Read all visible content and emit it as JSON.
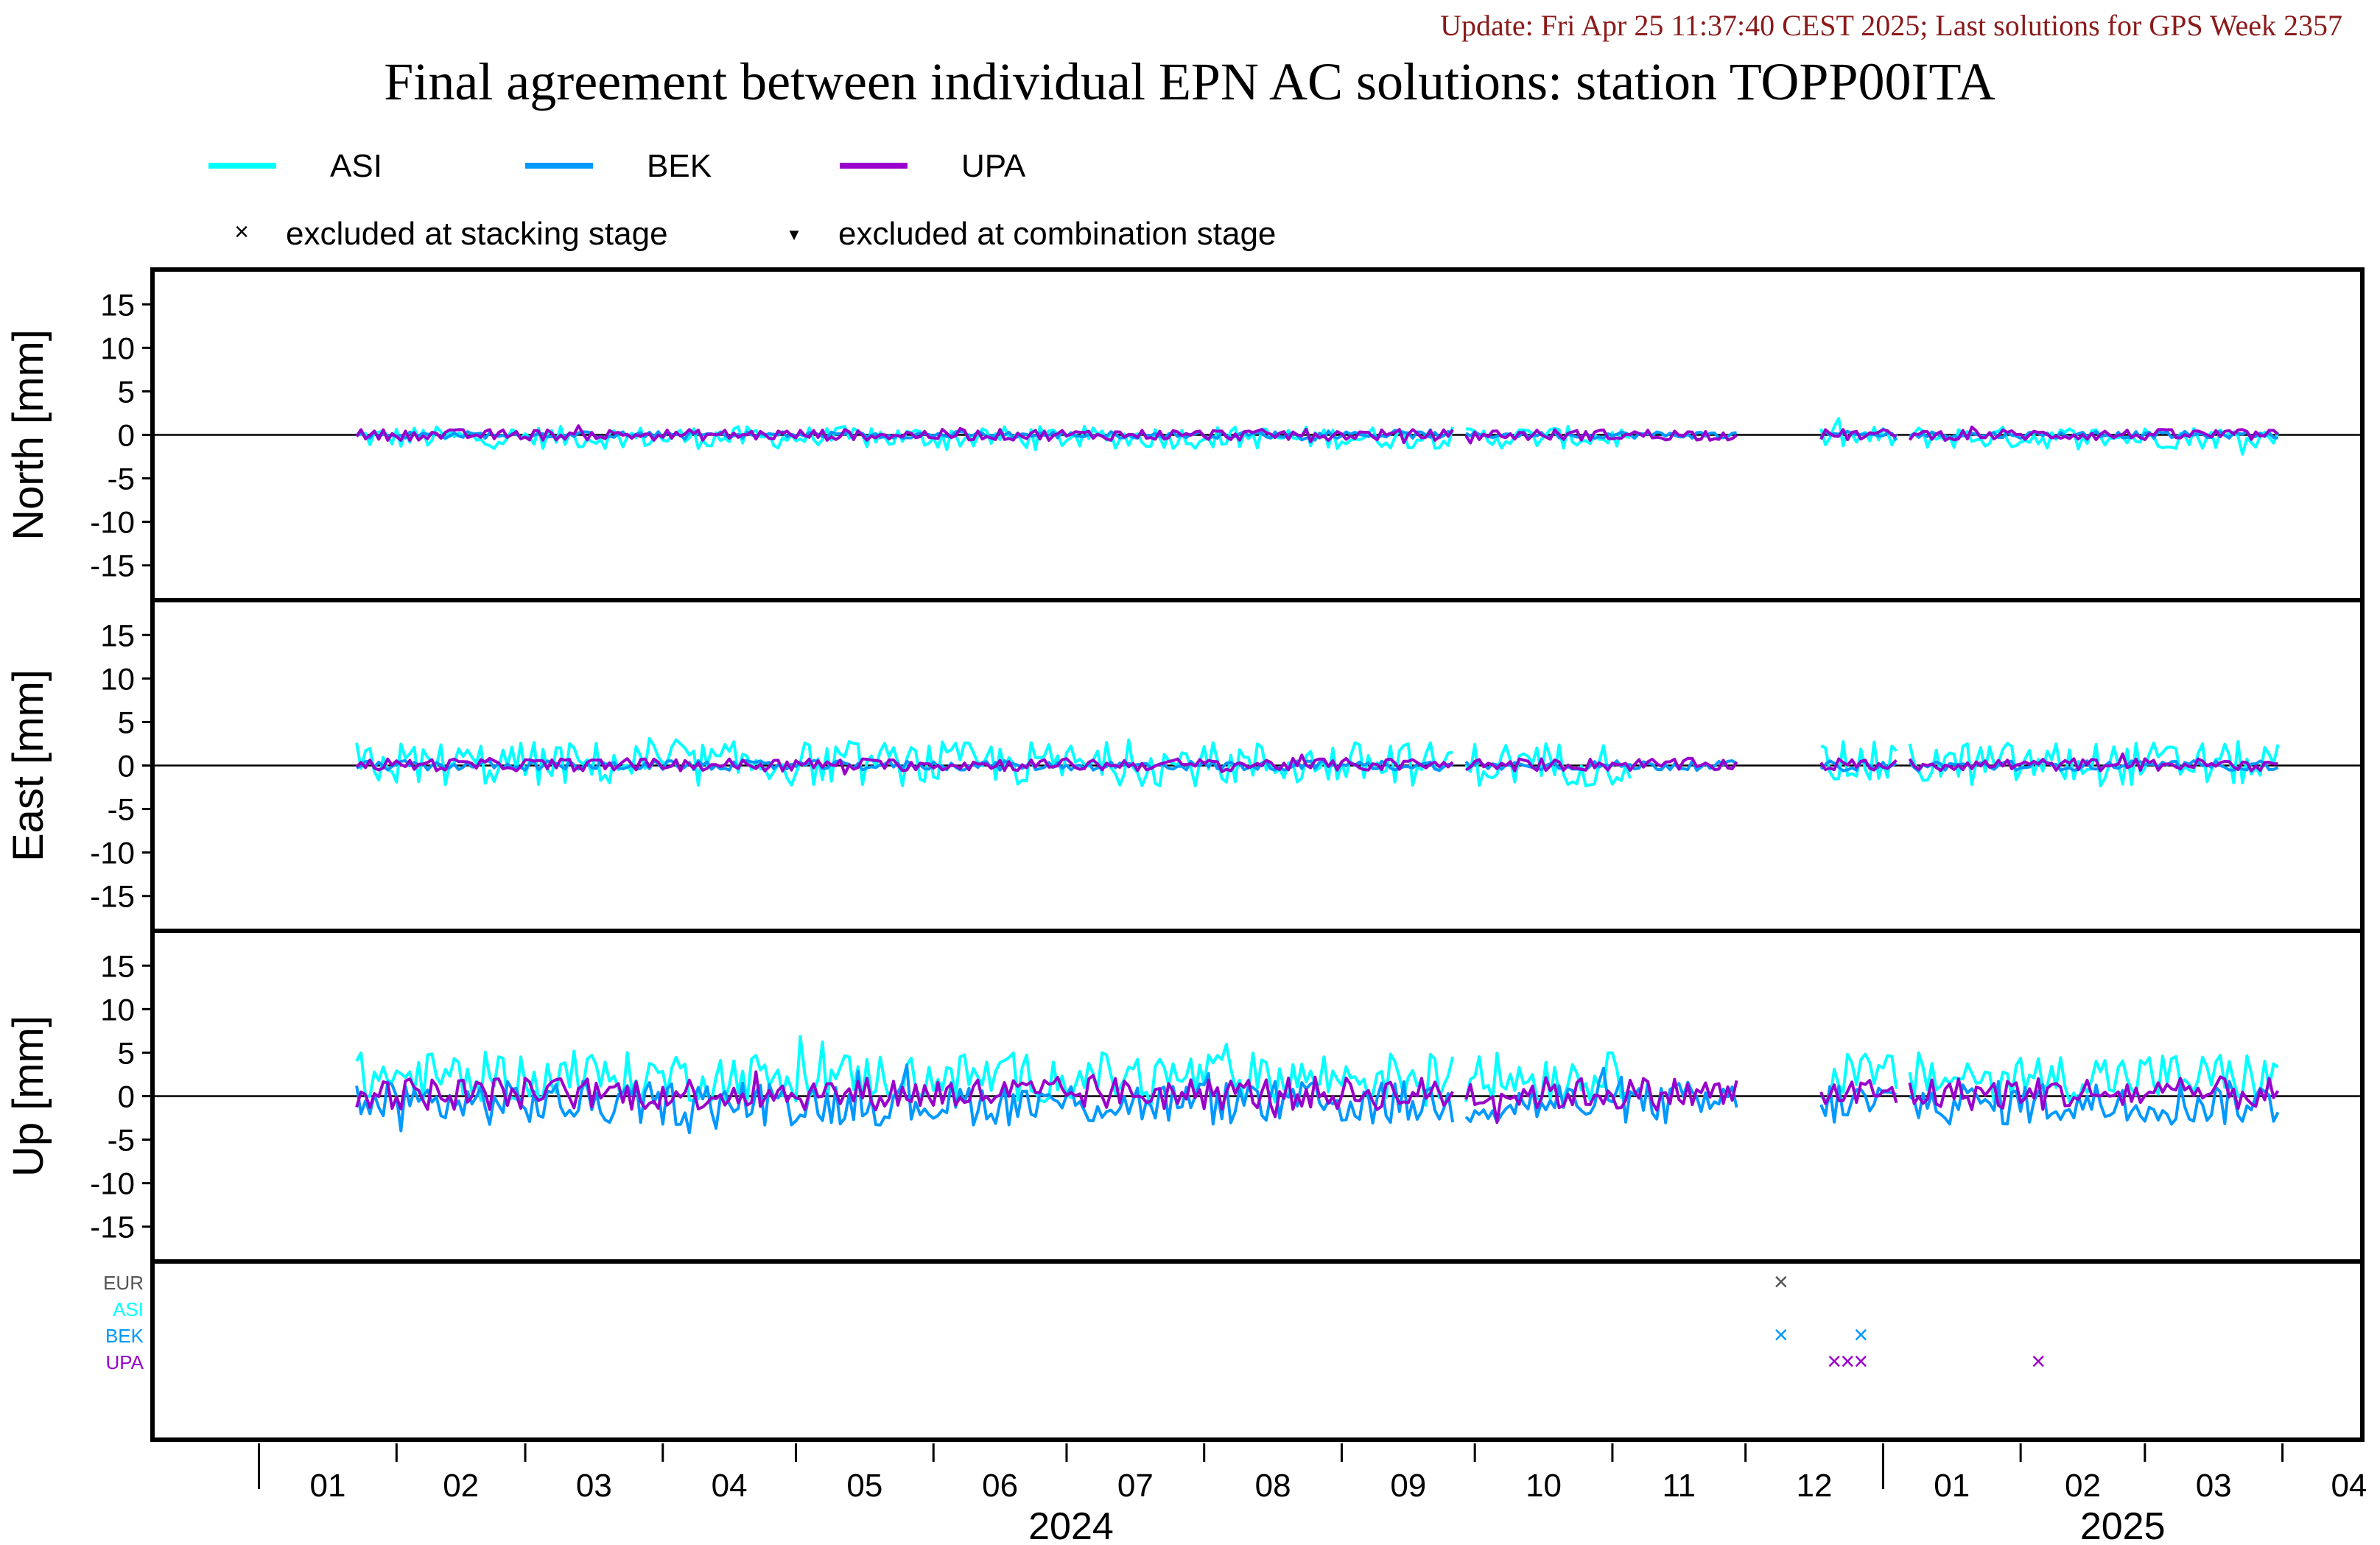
{
  "update_text": "Update: Fri Apr 25 11:37:40 CEST 2025; Last solutions for GPS Week 2357",
  "title": "Final agreement between individual EPN AC solutions: station TOPP00ITA",
  "colors": {
    "ASI": "#00ffff",
    "BEK": "#0099ff",
    "UPA": "#9900cc",
    "EUR": "#555555",
    "update": "#8b1a1a",
    "frame": "#000000"
  },
  "legend": {
    "series": [
      {
        "name": "ASI",
        "color": "#00ffff"
      },
      {
        "name": "BEK",
        "color": "#0099ff"
      },
      {
        "name": "UPA",
        "color": "#9900cc"
      }
    ],
    "stacking_marker": "×",
    "stacking_label": "excluded at stacking stage",
    "combination_marker": "▼",
    "combination_label": "excluded at combination stage"
  },
  "chart_data": [
    {
      "type": "line",
      "panel": "North",
      "ylabel": "North [mm]",
      "ylim": [
        -19,
        19
      ],
      "yticks": [
        15,
        10,
        5,
        0,
        -5,
        -10,
        -15
      ],
      "x_unit": "date",
      "xlim": [
        "2023-12-08",
        "2025-04-19"
      ],
      "series": [
        {
          "name": "ASI",
          "amplitude": 0.8,
          "bias": -0.3
        },
        {
          "name": "BEK",
          "amplitude": 0.25,
          "bias": 0.0
        },
        {
          "name": "UPA",
          "amplitude": 0.4,
          "bias": 0.0
        }
      ]
    },
    {
      "type": "line",
      "panel": "East",
      "ylabel": "East [mm]",
      "ylim": [
        -19,
        19
      ],
      "yticks": [
        15,
        10,
        5,
        0,
        -5,
        -10,
        -15
      ],
      "x_unit": "date",
      "xlim": [
        "2023-12-08",
        "2025-04-19"
      ],
      "series": [
        {
          "name": "ASI",
          "amplitude": 1.6,
          "bias": 0.2
        },
        {
          "name": "BEK",
          "amplitude": 0.35,
          "bias": 0.0
        },
        {
          "name": "UPA",
          "amplitude": 0.45,
          "bias": 0.1
        }
      ]
    },
    {
      "type": "line",
      "panel": "Up",
      "ylabel": "Up [mm]",
      "ylim": [
        -19,
        19
      ],
      "yticks": [
        15,
        10,
        5,
        0,
        -5,
        -10,
        -15
      ],
      "x_unit": "date",
      "xlim": [
        "2023-12-08",
        "2025-04-19"
      ],
      "series": [
        {
          "name": "ASI",
          "amplitude": 1.8,
          "bias": 2.2
        },
        {
          "name": "BEK",
          "amplitude": 1.6,
          "bias": -0.8
        },
        {
          "name": "UPA",
          "amplitude": 1.2,
          "bias": 0.3
        }
      ]
    },
    {
      "type": "scatter",
      "panel": "exclusions",
      "rows": [
        "EUR",
        "ASI",
        "BEK",
        "UPA"
      ],
      "points": [
        {
          "row": "EUR",
          "date": "2024-12-09",
          "marker": "×"
        },
        {
          "row": "BEK",
          "date": "2024-12-09",
          "marker": "×"
        },
        {
          "row": "BEK",
          "date": "2024-12-27",
          "marker": "×"
        },
        {
          "row": "UPA",
          "date": "2024-12-21",
          "marker": "×"
        },
        {
          "row": "UPA",
          "date": "2024-12-24",
          "marker": "×"
        },
        {
          "row": "UPA",
          "date": "2024-12-27",
          "marker": "×"
        },
        {
          "row": "UPA",
          "date": "2025-02-05",
          "marker": "×"
        }
      ]
    }
  ],
  "series_spans": {
    "ASI": [
      [
        "2024-01-23",
        "2024-11-05"
      ],
      [
        "2024-12-18",
        "2025-03-31"
      ]
    ],
    "BEK": [
      [
        "2024-01-23",
        "2024-11-30"
      ],
      [
        "2024-12-18",
        "2025-03-31"
      ]
    ],
    "UPA": [
      [
        "2024-01-23",
        "2024-11-30"
      ],
      [
        "2024-12-18",
        "2025-03-31"
      ]
    ]
  },
  "data_gaps": [
    [
      "2024-09-27",
      "2024-09-28"
    ],
    [
      "2024-11-30",
      "2024-12-17"
    ],
    [
      "2025-01-05",
      "2025-01-06"
    ]
  ],
  "x_axis": {
    "month_ticks": [
      "01",
      "02",
      "03",
      "04",
      "05",
      "06",
      "07",
      "08",
      "09",
      "10",
      "11",
      "12",
      "01",
      "02",
      "03",
      "04"
    ],
    "years": [
      "2024",
      "2025"
    ]
  }
}
